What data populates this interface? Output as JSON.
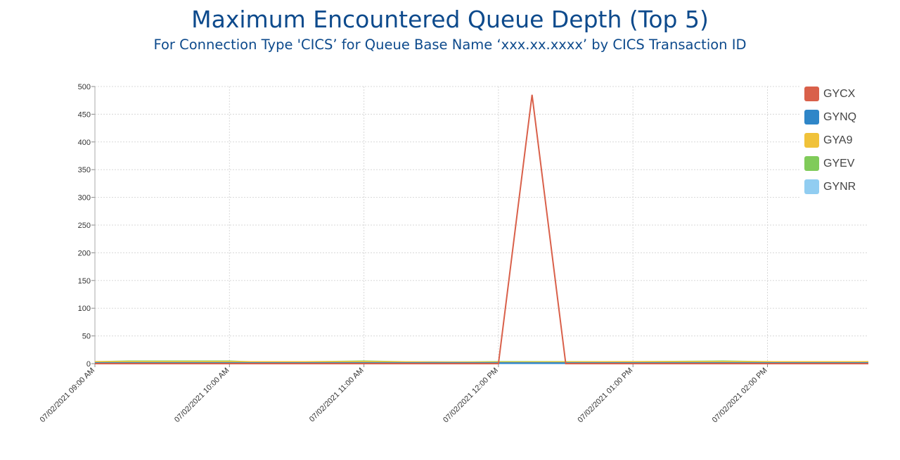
{
  "title": "Maximum Encountered Queue Depth (Top 5)",
  "subtitle": "For Connection Type 'CICS’ for Queue Base Name ‘xxx.xx.xxxx’ by CICS Transaction ID",
  "chart_data": {
    "type": "line",
    "title": "Maximum Encountered Queue Depth (Top 5)",
    "subtitle": "For Connection Type 'CICS’ for Queue Base Name ‘xxx.xx.xxxx’ by CICS Transaction ID",
    "xlabel": "",
    "ylabel": "",
    "xlim": [
      0,
      345
    ],
    "ylim": [
      0,
      500
    ],
    "grid": true,
    "legend_position": "top-right",
    "y_ticks": [
      "0",
      "50",
      "100",
      "150",
      "200",
      "250",
      "300",
      "350",
      "400",
      "450",
      "500"
    ],
    "x_ticks": [
      {
        "x": 0,
        "label": "07/02/2021 09:00 AM"
      },
      {
        "x": 60,
        "label": "07/02/2021 10:00 AM"
      },
      {
        "x": 120,
        "label": "07/02/2021 11:00 AM"
      },
      {
        "x": 180,
        "label": "07/02/2021 12:00 PM"
      },
      {
        "x": 240,
        "label": "07/02/2021 01:00 PM"
      },
      {
        "x": 300,
        "label": "07/02/2021 02:00 PM"
      }
    ],
    "series": [
      {
        "name": "GYCX",
        "color": "#d9604a",
        "x": [
          0,
          180,
          195,
          210,
          345
        ],
        "y": [
          0,
          0,
          485,
          0,
          0
        ]
      },
      {
        "name": "GYNQ",
        "color": "#2f86c8",
        "x": [
          0,
          60,
          120,
          180,
          240,
          300,
          345
        ],
        "y": [
          1,
          1,
          1,
          1,
          1,
          1,
          1
        ]
      },
      {
        "name": "GYA9",
        "color": "#f0c23a",
        "x": [
          0,
          60,
          120,
          180,
          240,
          300,
          345
        ],
        "y": [
          3,
          3,
          3,
          2,
          3,
          3,
          3
        ]
      },
      {
        "name": "GYEV",
        "color": "#80cb5a",
        "x": [
          0,
          15,
          60,
          75,
          120,
          150,
          180,
          240,
          280,
          300,
          315,
          345
        ],
        "y": [
          3,
          4,
          4,
          2,
          4,
          2,
          3,
          3,
          4,
          3,
          2,
          3
        ]
      },
      {
        "name": "GYNR",
        "color": "#91cdf1",
        "x": [
          0,
          60,
          120,
          150,
          180,
          240,
          300,
          345
        ],
        "y": [
          2,
          2,
          2,
          3,
          2,
          2,
          2,
          2
        ]
      }
    ]
  }
}
